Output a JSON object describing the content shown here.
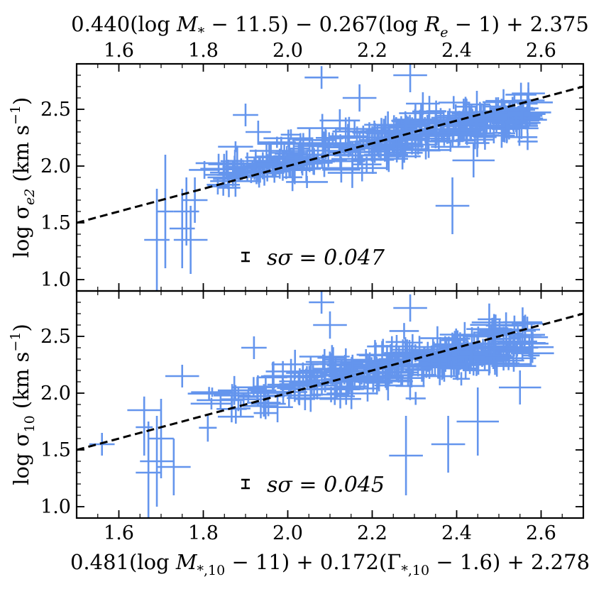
{
  "chart_data": {
    "type": "scatter",
    "marker_color": "#6495ED",
    "line_color": "#000000",
    "top_axis_label": "0.440(log M* − 11.5) − 0.267(log Re − 1) + 2.375",
    "bottom_axis_label": "0.481(log M*,10 − 11) + 0.172(Γ*,10 − 1.6) + 2.278",
    "xlim": [
      1.5,
      2.7
    ],
    "xticks": [
      "1.6",
      "1.8",
      "2.0",
      "2.2",
      "2.4",
      "2.6"
    ],
    "xtick_values": [
      1.6,
      1.8,
      2.0,
      2.2,
      2.4,
      2.6
    ],
    "panels": [
      {
        "name": "top",
        "ylabel": "log σe2 (km s⁻¹)",
        "ylim": [
          0.9,
          2.9
        ],
        "yticks": [
          "1.0",
          "1.5",
          "2.0",
          "2.5"
        ],
        "ytick_values": [
          1.0,
          1.5,
          2.0,
          2.5
        ],
        "annotation": "sσ = 0.047",
        "scatter_bar": {
          "x": 1.9,
          "y": 1.2,
          "err": 0.047
        },
        "fit_line": {
          "x": [
            1.5,
            2.7
          ],
          "y": [
            1.5,
            2.7
          ]
        },
        "outliers": [
          {
            "x": 1.71,
            "y": 1.6,
            "xerr": 0.02,
            "yerr": 0.5
          },
          {
            "x": 1.69,
            "y": 1.35,
            "xerr": 0.03,
            "yerr": 0.45
          },
          {
            "x": 1.75,
            "y": 1.45,
            "xerr": 0.03,
            "yerr": 0.35
          },
          {
            "x": 1.77,
            "y": 1.35,
            "xerr": 0.04,
            "yerr": 0.3
          },
          {
            "x": 1.76,
            "y": 1.6,
            "xerr": 0.03,
            "yerr": 0.3
          },
          {
            "x": 1.78,
            "y": 1.7,
            "xerr": 0.03,
            "yerr": 0.2
          },
          {
            "x": 2.08,
            "y": 2.78,
            "xerr": 0.04,
            "yerr": 0.1
          },
          {
            "x": 2.29,
            "y": 2.8,
            "xerr": 0.04,
            "yerr": 0.15
          },
          {
            "x": 2.17,
            "y": 2.6,
            "xerr": 0.04,
            "yerr": 0.12
          },
          {
            "x": 1.9,
            "y": 2.45,
            "xerr": 0.03,
            "yerr": 0.1
          },
          {
            "x": 1.93,
            "y": 2.3,
            "xerr": 0.03,
            "yerr": 0.1
          },
          {
            "x": 2.39,
            "y": 1.65,
            "xerr": 0.04,
            "yerr": 0.25
          },
          {
            "x": 2.44,
            "y": 2.05,
            "xerr": 0.05,
            "yerr": 0.15
          },
          {
            "x": 2.32,
            "y": 2.55,
            "xerr": 0.04,
            "yerr": 0.1
          },
          {
            "x": 1.85,
            "y": 1.9,
            "xerr": 0.04,
            "yerr": 0.1
          }
        ]
      },
      {
        "name": "bottom",
        "ylabel": "log σ10 (km s⁻¹)",
        "ylim": [
          0.9,
          2.9
        ],
        "yticks": [
          "1.0",
          "1.5",
          "2.0",
          "2.5"
        ],
        "ytick_values": [
          1.0,
          1.5,
          2.0,
          2.5
        ],
        "annotation": "sσ = 0.045",
        "scatter_bar": {
          "x": 1.9,
          "y": 1.2,
          "err": 0.045
        },
        "fit_line": {
          "x": [
            1.5,
            2.7
          ],
          "y": [
            1.5,
            2.7
          ]
        },
        "outliers": [
          {
            "x": 1.67,
            "y": 1.3,
            "xerr": 0.03,
            "yerr": 0.45
          },
          {
            "x": 1.69,
            "y": 1.4,
            "xerr": 0.04,
            "yerr": 0.4
          },
          {
            "x": 1.7,
            "y": 1.6,
            "xerr": 0.03,
            "yerr": 0.35
          },
          {
            "x": 1.73,
            "y": 1.35,
            "xerr": 0.04,
            "yerr": 0.25
          },
          {
            "x": 1.66,
            "y": 1.7,
            "xerr": 0.02,
            "yerr": 0.25
          },
          {
            "x": 1.56,
            "y": 1.55,
            "xerr": 0.03,
            "yerr": 0.1
          },
          {
            "x": 1.66,
            "y": 1.85,
            "xerr": 0.04,
            "yerr": 0.12
          },
          {
            "x": 2.08,
            "y": 2.8,
            "xerr": 0.03,
            "yerr": 0.1
          },
          {
            "x": 2.1,
            "y": 2.6,
            "xerr": 0.04,
            "yerr": 0.12
          },
          {
            "x": 1.92,
            "y": 2.4,
            "xerr": 0.03,
            "yerr": 0.1
          },
          {
            "x": 1.75,
            "y": 2.15,
            "xerr": 0.04,
            "yerr": 0.1
          },
          {
            "x": 2.38,
            "y": 1.55,
            "xerr": 0.04,
            "yerr": 0.25
          },
          {
            "x": 2.28,
            "y": 1.45,
            "xerr": 0.04,
            "yerr": 0.35
          },
          {
            "x": 2.29,
            "y": 2.75,
            "xerr": 0.04,
            "yerr": 0.12
          },
          {
            "x": 2.45,
            "y": 1.75,
            "xerr": 0.05,
            "yerr": 0.3
          },
          {
            "x": 2.55,
            "y": 2.05,
            "xerr": 0.05,
            "yerr": 0.15
          }
        ]
      }
    ],
    "bulk_cloud": {
      "x_range": [
        1.8,
        2.58
      ],
      "trend_slope": 0.72,
      "trend_intercept_at_2": 2.05,
      "scatter": 0.1,
      "n_points": 340
    }
  }
}
